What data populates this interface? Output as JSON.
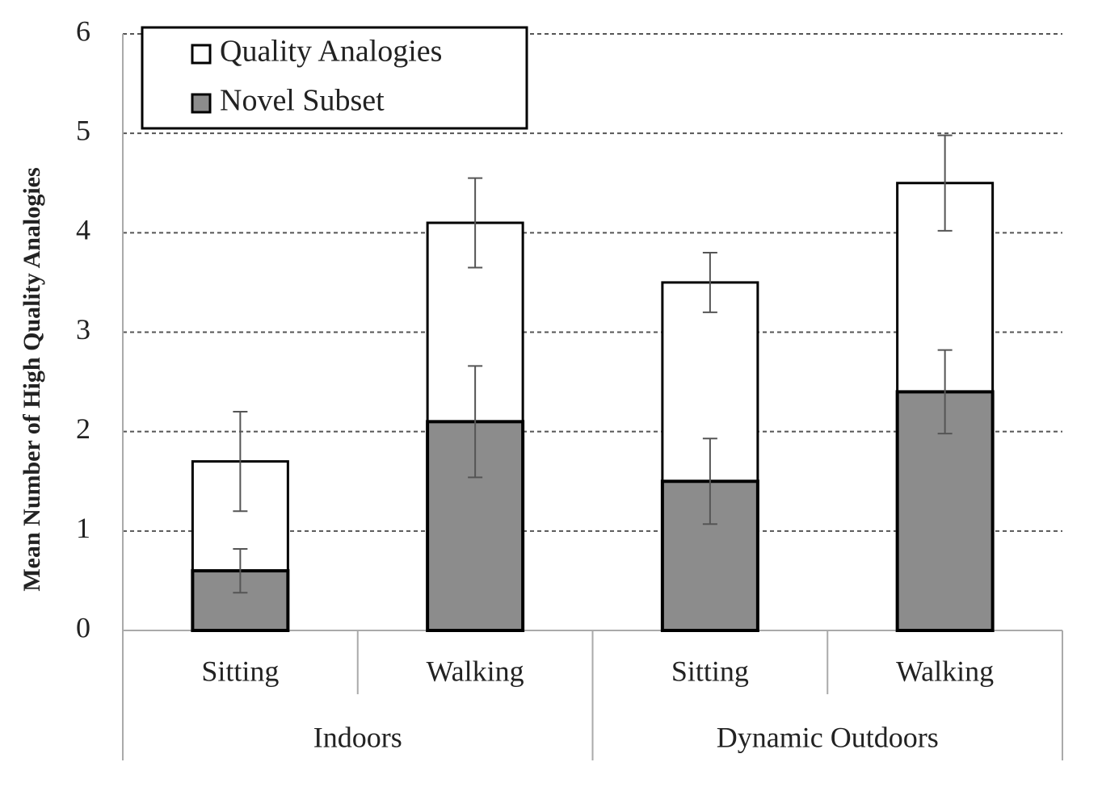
{
  "chart_data": {
    "type": "bar",
    "ylabel": "Mean Number of High Quality Analogies",
    "categories": [
      "Sitting",
      "Walking",
      "Sitting",
      "Walking"
    ],
    "groups": [
      "Indoors",
      "Dynamic Outdoors"
    ],
    "series": [
      {
        "name": "Quality Analogies",
        "color": "#ffffff",
        "values": [
          1.7,
          4.1,
          3.5,
          4.5
        ],
        "errors": [
          0.5,
          0.45,
          0.3,
          0.48
        ]
      },
      {
        "name": "Novel Subset",
        "color": "#8c8c8c",
        "values": [
          0.6,
          2.1,
          1.5,
          2.4
        ],
        "errors": [
          0.22,
          0.56,
          0.43,
          0.42
        ]
      }
    ],
    "ylim": [
      0,
      6
    ],
    "yticks": [
      0,
      1,
      2,
      3,
      4,
      5,
      6
    ],
    "grid": true,
    "legend": "top-left"
  }
}
